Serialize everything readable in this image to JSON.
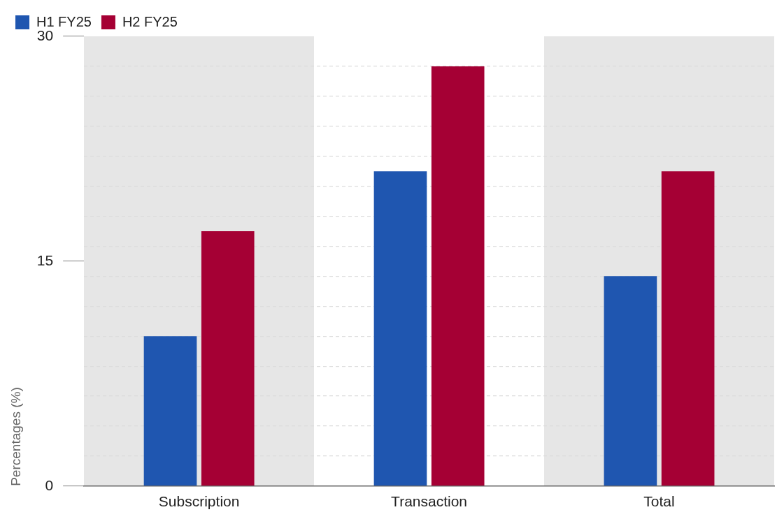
{
  "chart_data": {
    "type": "bar",
    "ylabel": "Percentages (%)",
    "categories": [
      "Subscription",
      "Transaction",
      "Total"
    ],
    "series": [
      {
        "name": "H1 FY25",
        "color": "#1f56b0",
        "values": [
          10,
          21,
          14
        ]
      },
      {
        "name": "H2 FY25",
        "color": "#a50034",
        "values": [
          17,
          28,
          21
        ]
      }
    ],
    "ylim": [
      0,
      30
    ],
    "yticks": [
      0,
      {
        "value": 2,
        "label": null
      },
      {
        "value": 4,
        "label": null
      },
      {
        "value": 6,
        "label": null
      },
      {
        "value": 8,
        "label": null
      },
      {
        "value": 10,
        "label": null
      },
      {
        "value": 12,
        "label": null
      },
      {
        "value": 14,
        "label": null
      },
      15,
      {
        "value": 16,
        "label": null
      },
      {
        "value": 18,
        "label": null
      },
      {
        "value": 20,
        "label": null
      },
      {
        "value": 22,
        "label": null
      },
      {
        "value": 24,
        "label": null
      },
      {
        "value": 26,
        "label": null
      },
      {
        "value": 28,
        "label": null
      },
      30
    ],
    "grid": "y",
    "legend": "top left"
  }
}
